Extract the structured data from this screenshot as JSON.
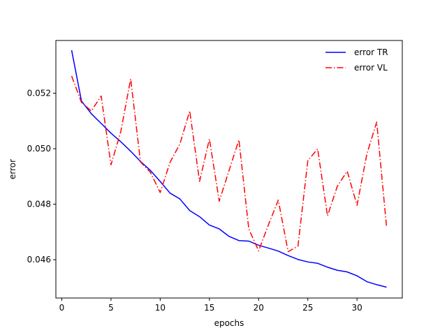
{
  "chart_data": {
    "type": "line",
    "title": "",
    "xlabel": "epochs",
    "ylabel": "error",
    "xlim": [
      -0.6,
      34.6
    ],
    "ylim": [
      0.04462,
      0.0539
    ],
    "xticks": [
      0,
      5,
      10,
      15,
      20,
      25,
      30
    ],
    "xtick_labels": [
      "0",
      "5",
      "10",
      "15",
      "20",
      "25",
      "30"
    ],
    "yticks": [
      0.046,
      0.048,
      0.05,
      0.052
    ],
    "ytick_labels": [
      "0.046",
      "0.048",
      "0.050",
      "0.052"
    ],
    "grid": false,
    "legend_position": "top-right",
    "x": [
      1,
      2,
      3,
      4,
      5,
      6,
      7,
      8,
      9,
      10,
      11,
      12,
      13,
      14,
      15,
      16,
      17,
      18,
      19,
      20,
      21,
      22,
      23,
      24,
      25,
      26,
      27,
      28,
      29,
      30,
      31,
      32,
      33
    ],
    "series": [
      {
        "name": "error TR",
        "color": "#0000ff",
        "style": "solid",
        "values": [
          0.05355,
          0.05172,
          0.05126,
          0.05091,
          0.05056,
          0.05025,
          0.04991,
          0.04954,
          0.04922,
          0.04882,
          0.0484,
          0.04819,
          0.04777,
          0.04755,
          0.04725,
          0.04711,
          0.04684,
          0.04669,
          0.04667,
          0.04652,
          0.04642,
          0.04631,
          0.04615,
          0.04601,
          0.04592,
          0.04587,
          0.04573,
          0.04562,
          0.04556,
          0.04542,
          0.04521,
          0.0451,
          0.04501
        ]
      },
      {
        "name": "error VL",
        "color": "#ff0000",
        "style": "dashdot",
        "values": [
          0.05262,
          0.05167,
          0.05136,
          0.0519,
          0.04942,
          0.05062,
          0.05252,
          0.04952,
          0.04915,
          0.04842,
          0.04951,
          0.05017,
          0.05136,
          0.04882,
          0.05035,
          0.04811,
          0.04922,
          0.05032,
          0.04711,
          0.04632,
          0.04726,
          0.04815,
          0.04629,
          0.04649,
          0.04957,
          0.04999,
          0.04758,
          0.04865,
          0.04919,
          0.04796,
          0.04981,
          0.05096,
          0.04718
        ]
      }
    ]
  }
}
